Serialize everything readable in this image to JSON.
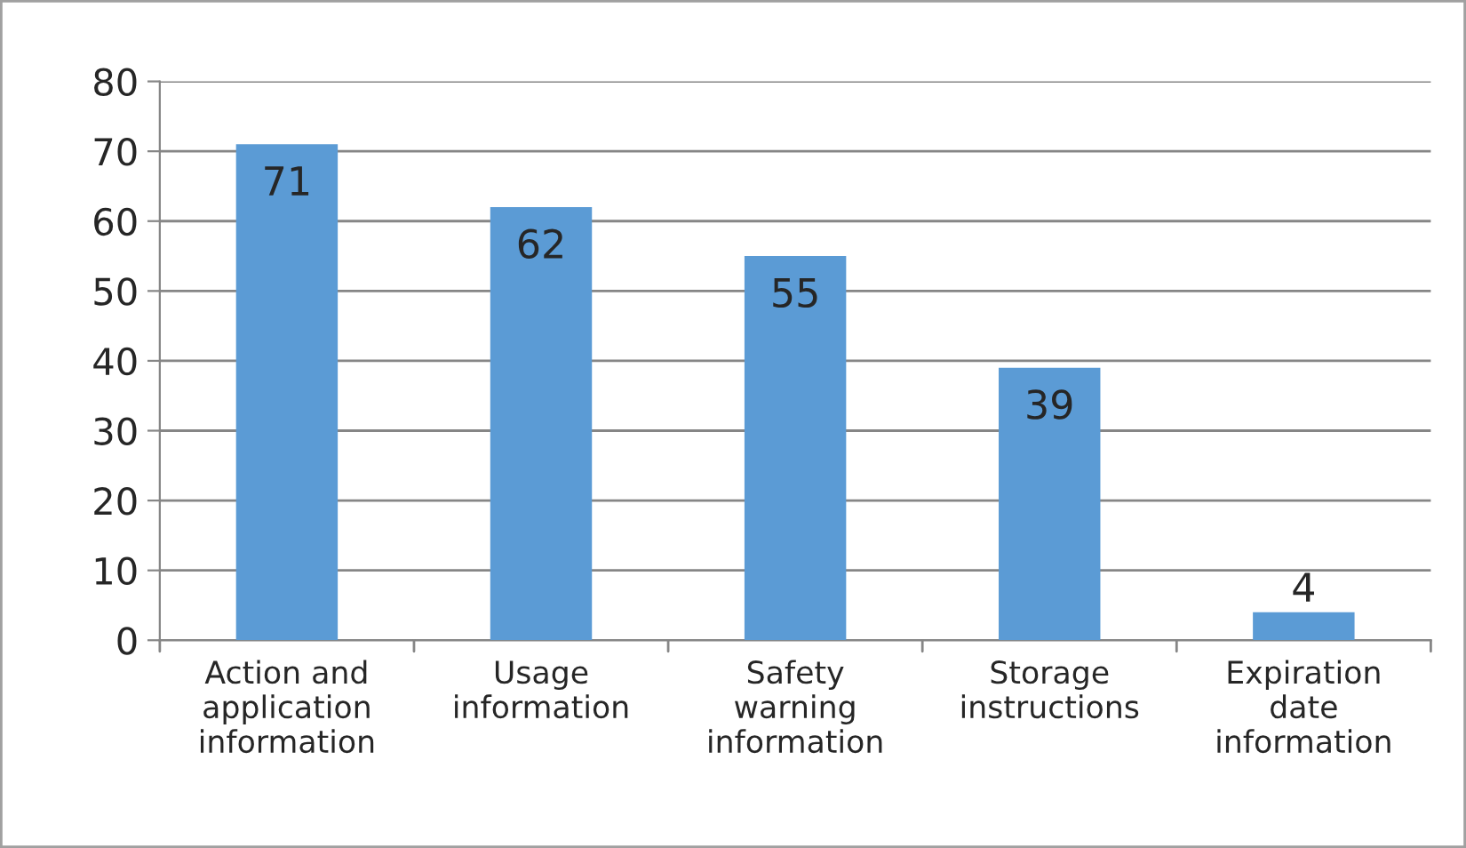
{
  "chart_data": {
    "type": "bar",
    "categories": [
      "Action and\napplication\ninformation",
      "Usage\ninformation",
      "Safety\nwarning\ninformation",
      "Storage\ninstructions",
      "Expiration\ndate\ninformation"
    ],
    "values": [
      71,
      62,
      55,
      39,
      4
    ],
    "color": "#5b9bd5",
    "ylim": [
      0,
      80
    ],
    "yticks": [
      0,
      10,
      20,
      30,
      40,
      50,
      60,
      70,
      80
    ],
    "grid": "y",
    "data_labels": true
  }
}
